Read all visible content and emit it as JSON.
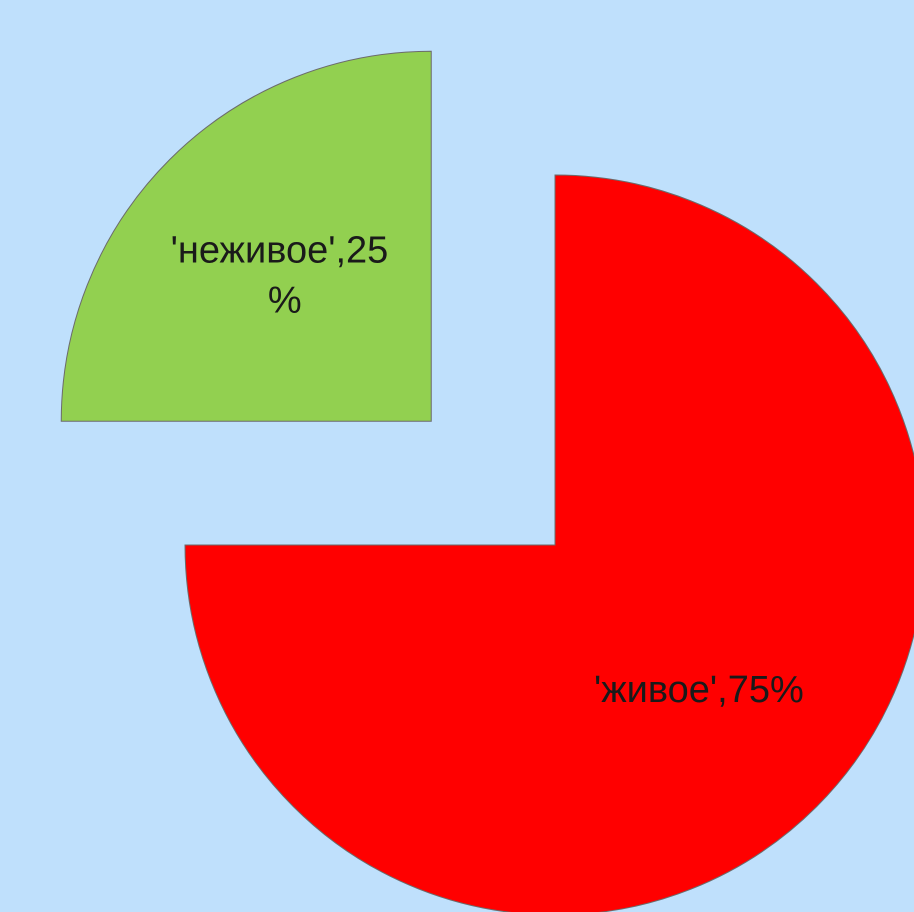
{
  "chart_data": {
    "type": "pie",
    "exploded": true,
    "slices": [
      {
        "category": "'живое'",
        "value": 75,
        "unit": "%",
        "label_lines": [
          "'живое',75%"
        ],
        "color": "#ff0000"
      },
      {
        "category": "'неживое'",
        "value": 25,
        "unit": "%",
        "label_lines": [
          "'неживое',25",
          "%"
        ],
        "color": "#92d050"
      }
    ]
  },
  "colors": {
    "background": "#bfe0fc",
    "slice_border": "#6b6b6b"
  }
}
